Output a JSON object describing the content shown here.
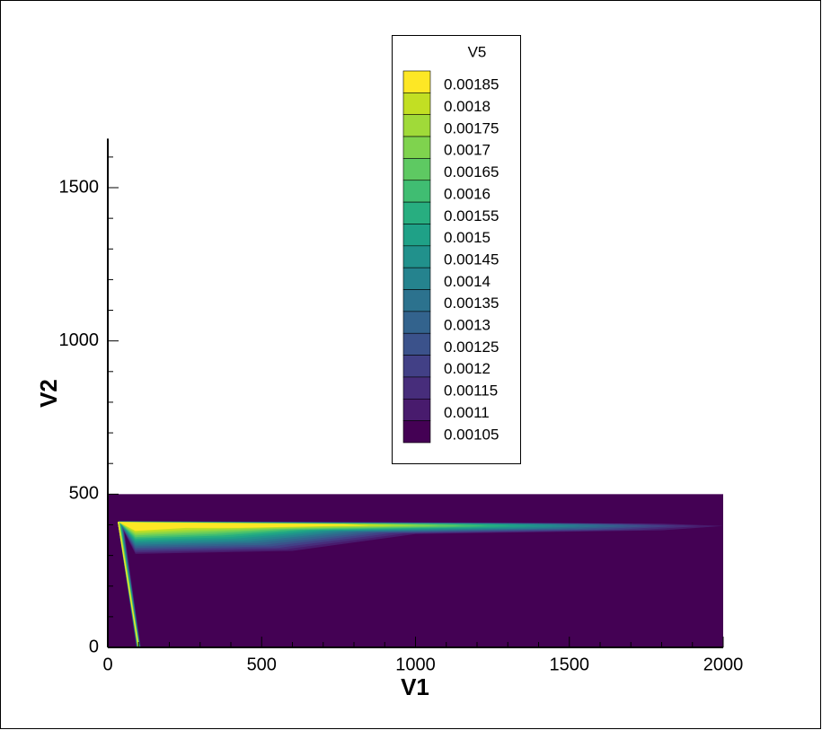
{
  "chart_data": {
    "type": "contour",
    "xlabel": "V1",
    "ylabel": "V2",
    "xlim": [
      0,
      2000
    ],
    "ylim": [
      0,
      1660
    ],
    "xticks": [
      0,
      500,
      1000,
      1500,
      2000
    ],
    "yticks": [
      0,
      500,
      1000,
      1500
    ],
    "xminor": [
      100,
      200,
      300,
      400,
      600,
      700,
      800,
      900,
      1100,
      1200,
      1300,
      1400,
      1600,
      1700,
      1800,
      1900
    ],
    "yminor": [
      100,
      200,
      300,
      400,
      600,
      700,
      800,
      900,
      1100,
      1200,
      1300,
      1400,
      1600
    ],
    "legend_title": "V5",
    "levels": [
      0.00185,
      0.0018,
      0.00175,
      0.0017,
      0.00165,
      0.0016,
      0.00155,
      0.0015,
      0.00145,
      0.0014,
      0.00135,
      0.0013,
      0.00125,
      0.0012,
      0.00115,
      0.0011,
      0.00105
    ],
    "colors": [
      "#fde725",
      "#c2df23",
      "#a0da39",
      "#7fd34e",
      "#5ec962",
      "#40bd72",
      "#28ae80",
      "#1fa187",
      "#21918c",
      "#25838e",
      "#2c728e",
      "#33638d",
      "#3b528b",
      "#424086",
      "#472d7b",
      "#481b6d",
      "#440154"
    ]
  }
}
